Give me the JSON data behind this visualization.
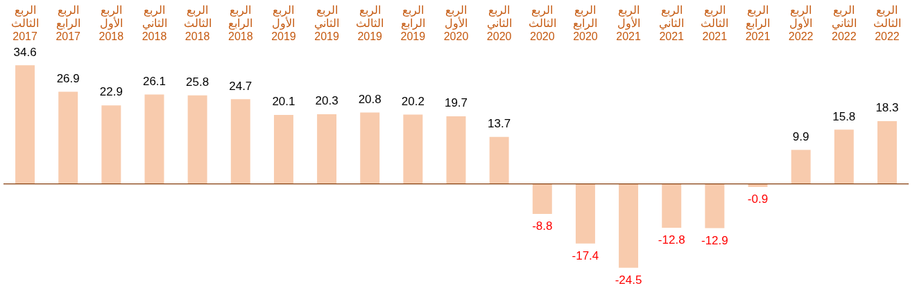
{
  "chart_data": {
    "type": "bar",
    "categories": [
      "الربع الثالث 2017",
      "الربع الرابع 2017",
      "الربع الأول 2018",
      "الربع الثاني 2018",
      "الربع الثالث 2018",
      "الربع الرابع 2018",
      "الربع الأول 2019",
      "الربع الثاني 2019",
      "الربع الثالث 2019",
      "الربع الرابع 2019",
      "الربع الأول 2020",
      "الربع الثاني 2020",
      "الربع الثالث 2020",
      "الربع الرابع 2020",
      "الربع الأول 2021",
      "الربع الثاني 2021",
      "الربع الثالث 2021",
      "الربع الرابع 2021",
      "الربع الأول 2022",
      "الربع الثاني 2022",
      "الربع الثالث 2022"
    ],
    "values": [
      34.6,
      26.9,
      22.9,
      26.1,
      25.8,
      24.7,
      20.1,
      20.3,
      20.8,
      20.2,
      19.7,
      13.7,
      -8.8,
      -17.4,
      -24.5,
      -12.8,
      -12.9,
      -0.9,
      9.9,
      15.8,
      18.3
    ],
    "color": "#f8cbad",
    "data_labels": true,
    "ref_lines": [
      {
        "axis": "y",
        "value": 0,
        "color": "#843c0c"
      }
    ],
    "grid": false,
    "legend": false,
    "tick_labels": "x"
  }
}
